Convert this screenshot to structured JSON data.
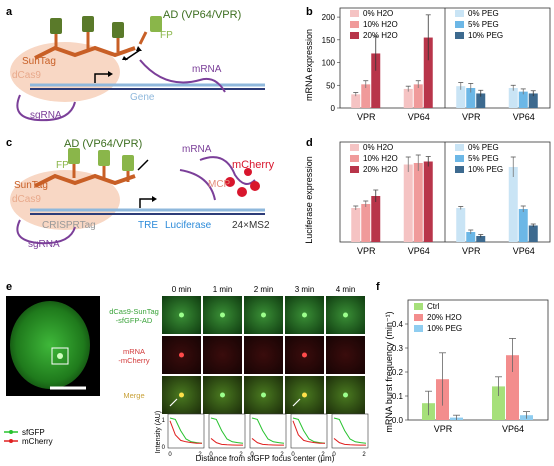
{
  "panels": {
    "a": {
      "label": "a",
      "ad_label": "AD (VP64/VPR)",
      "fp": "FP",
      "suntag": "SunTag",
      "dcas9": "dCas9",
      "mrna": "mRNA",
      "sgrna": "sgRNA",
      "gene": "Gene"
    },
    "c": {
      "label": "c",
      "ad_label": "AD (VP64/VPR)",
      "fp": "FP",
      "suntag": "SunTag",
      "dcas9": "dCas9",
      "crisprtag": "CRISPRTag",
      "sgrna": "sgRNA",
      "mrna": "mRNA",
      "mcherry": "mCherry",
      "mcp": "MCP",
      "tre": "TRE",
      "luciferase": "Luciferase",
      "ms2": "24×MS2"
    },
    "e": {
      "label": "e",
      "time_labels": [
        "0 min",
        "1 min",
        "2 min",
        "3 min",
        "4 min"
      ],
      "row_labels": [
        "dCas9-SunTag\n-sfGFP-AD",
        "mRNA\n-mCherry",
        "Merge"
      ],
      "legend": [
        "sfGFP",
        "mCherry"
      ],
      "ylabel": "Intensity (AU)",
      "xlabel": "Distance from sfGFP focus center (μm)",
      "xticks": [
        "0",
        "2"
      ],
      "yticks": [
        "0",
        "1"
      ]
    }
  },
  "colors": {
    "ctrl": "#f5c3c3",
    "h2o10": "#f09a9a",
    "h2o20": "#b8354a",
    "peg0": "#c9e4f5",
    "peg5": "#6cb7e6",
    "peg10": "#3d6a8f",
    "green": "#27c22e",
    "red": "#e02020",
    "f_ctrl": "#a6e07a",
    "f_h2o": "#f38d8d",
    "f_peg": "#8fcdf0"
  },
  "chart_data": [
    {
      "panel": "b",
      "type": "bar",
      "ylabel": "mRNA expression",
      "yticks": [
        "0",
        "50",
        "100",
        "150",
        "200"
      ],
      "ylim": [
        0,
        220
      ],
      "categories": [
        "VPR",
        "VP64"
      ],
      "groups": [
        {
          "legend": [
            "0% H2O",
            "10% H2O",
            "20% H2O"
          ],
          "series": [
            {
              "name": "0% H2O",
              "values": [
                30,
                42
              ],
              "err": [
                4,
                6
              ]
            },
            {
              "name": "10% H2O",
              "values": [
                52,
                52
              ],
              "err": [
                8,
                8
              ]
            },
            {
              "name": "20% H2O",
              "values": [
                120,
                155
              ],
              "err": [
                38,
                50
              ]
            }
          ]
        },
        {
          "legend": [
            "0% PEG",
            "5% PEG",
            "10% PEG"
          ],
          "series": [
            {
              "name": "0% PEG",
              "values": [
                48,
                44
              ],
              "err": [
                8,
                6
              ]
            },
            {
              "name": "5% PEG",
              "values": [
                44,
                36
              ],
              "err": [
                10,
                6
              ]
            },
            {
              "name": "10% PEG",
              "values": [
                32,
                32
              ],
              "err": [
                7,
                6
              ]
            }
          ]
        }
      ]
    },
    {
      "panel": "d",
      "type": "bar",
      "ylabel": "Luciferase expression",
      "yticks": [],
      "ylim": [
        0,
        20
      ],
      "categories": [
        "VPR",
        "VP64"
      ],
      "groups": [
        {
          "legend": [
            "0% H2O",
            "10% H2O",
            "20% H2O"
          ],
          "series": [
            {
              "name": "0% H2O",
              "values": [
                6.8,
                15.5
              ],
              "err": [
                0.4,
                1.5
              ]
            },
            {
              "name": "10% H2O",
              "values": [
                7.6,
                15.8
              ],
              "err": [
                0.6,
                1.6
              ]
            },
            {
              "name": "20% H2O",
              "values": [
                9.2,
                16.1
              ],
              "err": [
                1.2,
                1.0
              ]
            }
          ]
        },
        {
          "legend": [
            "0% PEG",
            "5% PEG",
            "10% PEG"
          ],
          "series": [
            {
              "name": "0% PEG",
              "values": [
                6.8,
                15.0
              ],
              "err": [
                0.3,
                2.0
              ]
            },
            {
              "name": "5% PEG",
              "values": [
                2.0,
                6.6
              ],
              "err": [
                0.4,
                0.6
              ]
            },
            {
              "name": "10% PEG",
              "values": [
                1.2,
                3.3
              ],
              "err": [
                0.3,
                0.3
              ]
            }
          ]
        }
      ]
    },
    {
      "panel": "f",
      "type": "bar",
      "ylabel": "mRNA burst frequency (min⁻¹)",
      "yticks": [
        "0.0",
        "0.1",
        "0.2",
        "0.3",
        "0.4"
      ],
      "ylim": [
        0,
        0.5
      ],
      "categories": [
        "VPR",
        "VP64"
      ],
      "legend": [
        "Ctrl",
        "20% H2O",
        "10% PEG"
      ],
      "series": [
        {
          "name": "Ctrl",
          "values": [
            0.07,
            0.14
          ],
          "err": [
            0.05,
            0.04
          ]
        },
        {
          "name": "20% H2O",
          "values": [
            0.17,
            0.27
          ],
          "err": [
            0.11,
            0.07
          ]
        },
        {
          "name": "10% PEG",
          "values": [
            0.01,
            0.02
          ],
          "err": [
            0.01,
            0.015
          ]
        }
      ]
    }
  ]
}
